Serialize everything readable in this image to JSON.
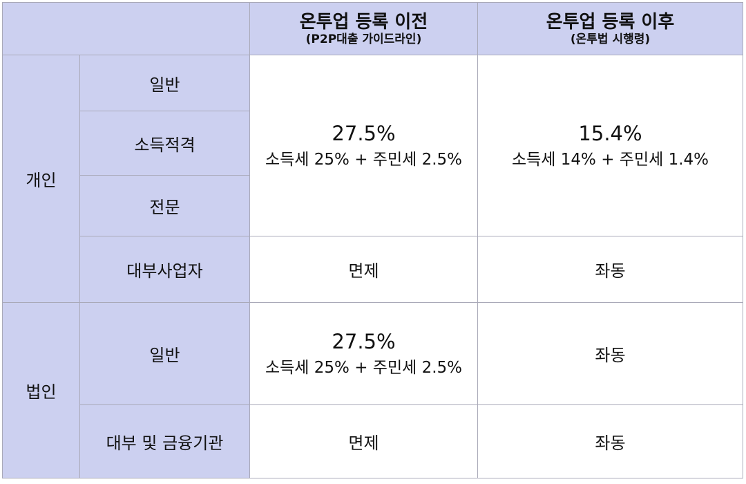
{
  "header": {
    "before_title": "온투업 등록 이전",
    "before_sub": "(P2P대출 가이드라인)",
    "after_title": "온투업 등록 이후",
    "after_sub": "(온투법 시행령)"
  },
  "individual": {
    "label": "개인",
    "rows": [
      "일반",
      "소득적격",
      "전문",
      "대부사업자"
    ],
    "before_rate": "27.5%",
    "before_note": "소득세 25% + 주민세 2.5%",
    "after_rate": "15.4%",
    "after_note": "소득세 14% + 주민세 1.4%",
    "lender_before": "면제",
    "lender_after": "좌동"
  },
  "corporate": {
    "label": "법인",
    "rows": [
      "일반",
      "대부 및 금융기관"
    ],
    "general_before_rate": "27.5%",
    "general_before_note": "소득세 25% + 주민세 2.5%",
    "general_after": "좌동",
    "finance_before": "면제",
    "finance_after": "좌동"
  }
}
